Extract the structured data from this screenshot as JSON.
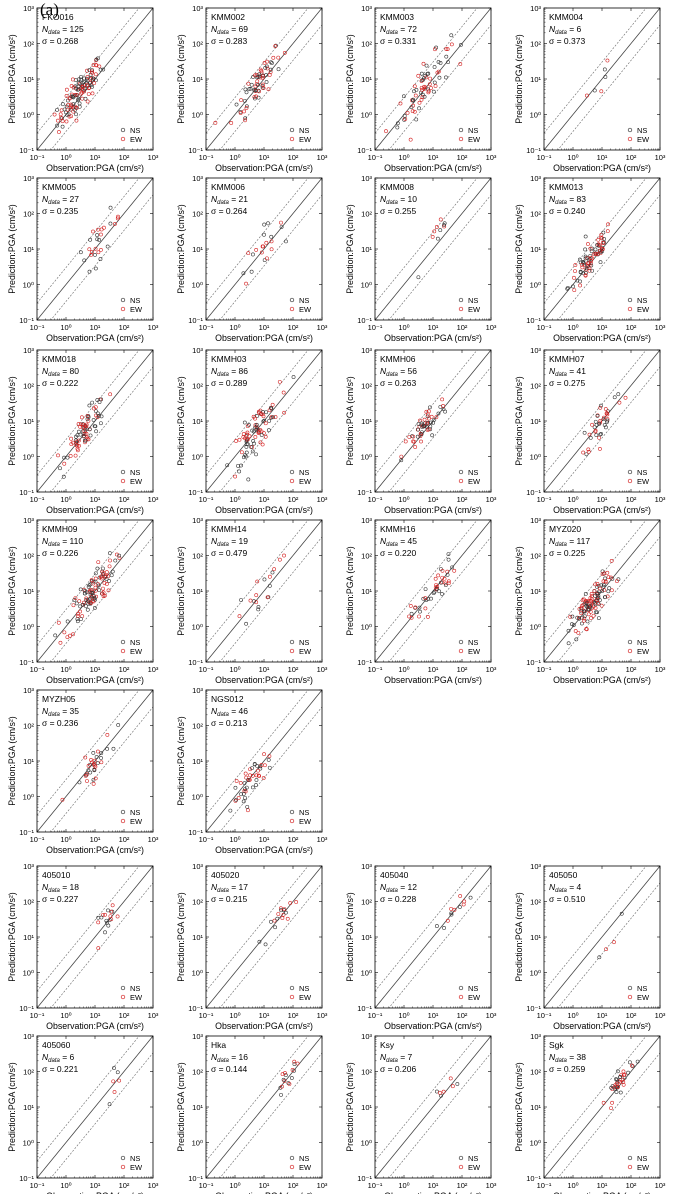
{
  "figure_label": "(a)",
  "chart_data": {
    "type": "scatter",
    "xlabel": "Observation:PGA (cm/s²)",
    "ylabel": "Prediction:PGA (cm/s²)",
    "xlim": [
      0.1,
      1000
    ],
    "ylim": [
      0.1,
      1000
    ],
    "scale": "log",
    "ticks": [
      "10⁻¹",
      "10⁰",
      "10¹",
      "10²",
      "10³"
    ],
    "legend": [
      {
        "name": "NS",
        "color": "#333333"
      },
      {
        "name": "EW",
        "color": "#d42020"
      }
    ],
    "reference_lines": [
      "y = x",
      "y = 3x",
      "y = x/3"
    ],
    "panels": [
      {
        "station": "FKO016",
        "n_label": "N",
        "n_sub": "data",
        "n": 125,
        "sigma": "σ = 0.268",
        "center": [
          3,
          4
        ],
        "spread": 1.0
      },
      {
        "station": "KMM002",
        "n_label": "N",
        "n_sub": "data",
        "n": 69,
        "sigma": "σ = 0.283",
        "center": [
          6,
          8
        ],
        "spread": 1.1
      },
      {
        "station": "KMM003",
        "n_label": "N",
        "n_sub": "data",
        "n": 72,
        "sigma": "σ = 0.331",
        "center": [
          5,
          6
        ],
        "spread": 1.2
      },
      {
        "station": "KMM004",
        "n_label": "N",
        "n_sub": "data",
        "n": 6,
        "sigma": "σ = 0.373",
        "center": [
          10,
          12
        ],
        "spread": 1.3
      },
      {
        "station": "KMM005",
        "n_label": "N",
        "n_sub": "data",
        "n": 27,
        "sigma": "σ = 0.235",
        "center": [
          15,
          18
        ],
        "spread": 1.0
      },
      {
        "station": "KMM006",
        "n_label": "N",
        "n_sub": "data",
        "n": 21,
        "sigma": "σ = 0.264",
        "center": [
          8,
          10
        ],
        "spread": 1.0
      },
      {
        "station": "KMM008",
        "n_label": "N",
        "n_sub": "data",
        "n": 10,
        "sigma": "σ = 0.255",
        "center": [
          15,
          20
        ],
        "spread": 0.9
      },
      {
        "station": "KMM013",
        "n_label": "N",
        "n_sub": "data",
        "n": 83,
        "sigma": "σ = 0.240",
        "center": [
          4,
          5
        ],
        "spread": 1.0
      },
      {
        "station": "KMM018",
        "n_label": "N",
        "n_sub": "data",
        "n": 80,
        "sigma": "σ = 0.222",
        "center": [
          5,
          6
        ],
        "spread": 0.9
      },
      {
        "station": "KMMH03",
        "n_label": "N",
        "n_sub": "data",
        "n": 86,
        "sigma": "σ = 0.289",
        "center": [
          5,
          5
        ],
        "spread": 1.1
      },
      {
        "station": "KMMH06",
        "n_label": "N",
        "n_sub": "data",
        "n": 56,
        "sigma": "σ = 0.263",
        "center": [
          5,
          6
        ],
        "spread": 1.0
      },
      {
        "station": "KMMH07",
        "n_label": "N",
        "n_sub": "data",
        "n": 41,
        "sigma": "σ = 0.275",
        "center": [
          10,
          10
        ],
        "spread": 1.0
      },
      {
        "station": "KMMH09",
        "n_label": "N",
        "n_sub": "data",
        "n": 110,
        "sigma": "σ = 0.226",
        "center": [
          7,
          8
        ],
        "spread": 1.1
      },
      {
        "station": "KMMH14",
        "n_label": "N",
        "n_sub": "data",
        "n": 19,
        "sigma": "σ = 0.479",
        "center": [
          7,
          8
        ],
        "spread": 1.0
      },
      {
        "station": "KMMH16",
        "n_label": "N",
        "n_sub": "data",
        "n": 45,
        "sigma": "σ = 0.220",
        "center": [
          10,
          10
        ],
        "spread": 1.0
      },
      {
        "station": "MYZ020",
        "n_label": "N",
        "n_sub": "data",
        "n": 117,
        "sigma": "σ = 0.225",
        "center": [
          5,
          5
        ],
        "spread": 1.0
      },
      {
        "station": "MYZH05",
        "n_label": "N",
        "n_sub": "data",
        "n": 35,
        "sigma": "σ = 0.236",
        "center": [
          8,
          7
        ],
        "spread": 0.9
      },
      {
        "station": "NGS012",
        "n_label": "N",
        "n_sub": "data",
        "n": 46,
        "sigma": "σ = 0.213",
        "center": [
          4,
          3
        ],
        "spread": 0.9
      },
      {
        "station": "405010",
        "n_label": "N",
        "n_sub": "data",
        "n": 18,
        "sigma": "σ = 0.227",
        "center": [
          30,
          35
        ],
        "spread": 0.7
      },
      {
        "station": "405020",
        "n_label": "N",
        "n_sub": "data",
        "n": 17,
        "sigma": "σ = 0.215",
        "center": [
          50,
          50
        ],
        "spread": 0.6
      },
      {
        "station": "405040",
        "n_label": "N",
        "n_sub": "data",
        "n": 12,
        "sigma": "σ = 0.228",
        "center": [
          40,
          40
        ],
        "spread": 0.7
      },
      {
        "station": "405050",
        "n_label": "N",
        "n_sub": "data",
        "n": 4,
        "sigma": "σ = 0.510",
        "center": [
          30,
          20
        ],
        "spread": 0.7
      },
      {
        "station": "405060",
        "n_label": "N",
        "n_sub": "data",
        "n": 6,
        "sigma": "σ = 0.221",
        "center": [
          60,
          60
        ],
        "spread": 0.8
      },
      {
        "station": "Hka",
        "n_label": "N",
        "n_sub": "data",
        "n": 16,
        "sigma": "σ = 0.144",
        "center": [
          60,
          60
        ],
        "spread": 0.6
      },
      {
        "station": "Ksy",
        "n_label": "N",
        "n_sub": "data",
        "n": 7,
        "sigma": "σ = 0.206",
        "center": [
          40,
          50
        ],
        "spread": 0.7
      },
      {
        "station": "Sgk",
        "n_label": "N",
        "n_sub": "data",
        "n": 38,
        "sigma": "σ = 0.259",
        "center": [
          40,
          50
        ],
        "spread": 0.6
      }
    ]
  }
}
